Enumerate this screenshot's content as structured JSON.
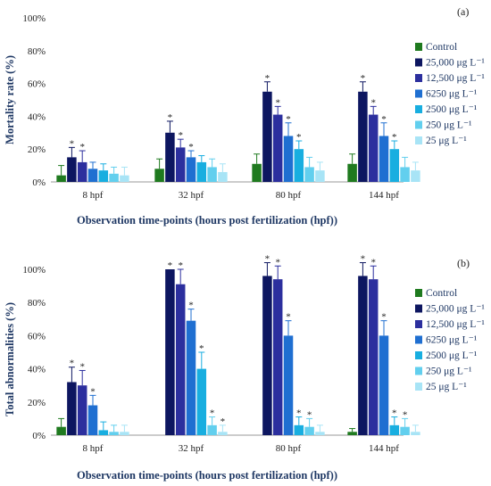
{
  "colors": [
    "#1f7a1f",
    "#0d1660",
    "#2c2f9e",
    "#1f6fd1",
    "#18aee0",
    "#62cfee",
    "#a8e4f6"
  ],
  "chart_data": [
    {
      "type": "bar",
      "panel_label": "(a)",
      "ylabel": "Mortality rate (%)",
      "xlabel": "Observation time-points (hours post fertilization (hpf))",
      "ylim": [
        0,
        100
      ],
      "yticks": [
        "0%",
        "20%",
        "40%",
        "60%",
        "80%",
        "100%"
      ],
      "grid": false,
      "legend_position": "right",
      "categories": [
        "8 hpf",
        "32 hpf",
        "80 hpf",
        "144 hpf"
      ],
      "series": [
        {
          "name": "Control",
          "values": [
            4,
            8,
            11,
            11
          ],
          "errors": [
            6,
            6,
            6,
            6
          ],
          "stars": [
            false,
            false,
            false,
            false
          ]
        },
        {
          "name": "25,000 μg L⁻¹",
          "values": [
            15,
            30,
            55,
            55
          ],
          "errors": [
            6,
            7,
            6,
            6
          ],
          "stars": [
            true,
            true,
            true,
            true
          ]
        },
        {
          "name": "12,500 μg L⁻¹",
          "values": [
            12,
            21,
            41,
            41
          ],
          "errors": [
            7,
            5,
            5,
            5
          ],
          "stars": [
            true,
            true,
            true,
            true
          ]
        },
        {
          "name": "6250 μg L⁻¹",
          "values": [
            8,
            15,
            28,
            28
          ],
          "errors": [
            4,
            4,
            8,
            8
          ],
          "stars": [
            false,
            true,
            true,
            true
          ]
        },
        {
          "name": "2500 μg L⁻¹",
          "values": [
            7,
            12,
            20,
            20
          ],
          "errors": [
            4,
            4,
            5,
            5
          ],
          "stars": [
            false,
            false,
            true,
            true
          ]
        },
        {
          "name": "250 μg L⁻¹",
          "values": [
            5,
            9,
            9,
            9
          ],
          "errors": [
            4,
            5,
            6,
            6
          ],
          "stars": [
            false,
            false,
            false,
            false
          ]
        },
        {
          "name": "25 μg L⁻¹",
          "values": [
            4,
            6,
            7,
            7
          ],
          "errors": [
            5,
            5,
            5,
            5
          ],
          "stars": [
            false,
            false,
            false,
            false
          ]
        }
      ]
    },
    {
      "type": "bar",
      "panel_label": "(b)",
      "ylabel": "Total abnormalities (%)",
      "xlabel": "Observation time-points (hours post fertilization (hpf))",
      "ylim": [
        0,
        100
      ],
      "yticks": [
        "0%",
        "20%",
        "40%",
        "60%",
        "80%",
        "100%"
      ],
      "grid": false,
      "legend_position": "right",
      "categories": [
        "8 hpf",
        "32 hpf",
        "80 hpf",
        "144 hpf"
      ],
      "series": [
        {
          "name": "Control",
          "values": [
            5,
            0,
            0,
            2
          ],
          "errors": [
            5,
            0,
            0,
            2
          ],
          "stars": [
            false,
            false,
            false,
            false
          ]
        },
        {
          "name": "25,000  μg L⁻¹",
          "values": [
            32,
            100,
            96,
            96
          ],
          "errors": [
            9,
            0,
            8,
            8
          ],
          "stars": [
            true,
            true,
            true,
            true
          ]
        },
        {
          "name": "12,500 μg L⁻¹",
          "values": [
            30,
            91,
            94,
            94
          ],
          "errors": [
            9,
            9,
            8,
            8
          ],
          "stars": [
            true,
            true,
            true,
            true
          ]
        },
        {
          "name": "6250 μg L⁻¹",
          "values": [
            18,
            69,
            60,
            60
          ],
          "errors": [
            6,
            7,
            9,
            9
          ],
          "stars": [
            true,
            true,
            true,
            true
          ]
        },
        {
          "name": "2500 μg L⁻¹",
          "values": [
            3,
            40,
            6,
            6
          ],
          "errors": [
            5,
            10,
            5,
            5
          ],
          "stars": [
            false,
            true,
            true,
            true
          ]
        },
        {
          "name": "250 μg L⁻¹",
          "values": [
            2,
            6,
            5,
            5
          ],
          "errors": [
            4,
            5,
            5,
            5
          ],
          "stars": [
            false,
            true,
            true,
            true
          ]
        },
        {
          "name": "25 μg L⁻¹",
          "values": [
            2,
            2,
            2,
            2
          ],
          "errors": [
            4,
            4,
            4,
            4
          ],
          "stars": [
            false,
            true,
            false,
            false
          ]
        }
      ]
    }
  ]
}
